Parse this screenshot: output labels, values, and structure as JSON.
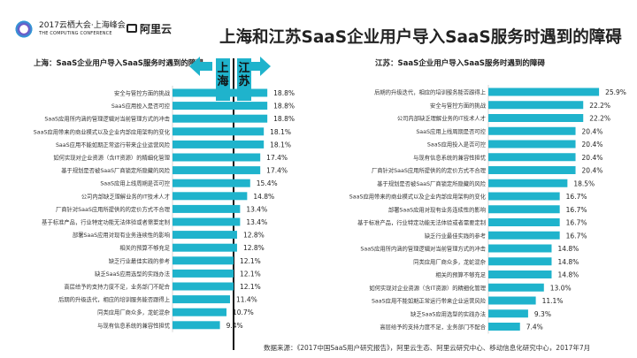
{
  "header": {
    "conference": "2017云栖大会·上海峰会",
    "conference_en": "THE COMPUTING CONFERENCE",
    "brand": "阿里云",
    "title": "上海和江苏SaaS企业用户导入SaaS服务时遇到的障碍"
  },
  "center": {
    "left_tab": "上海",
    "right_tab": "江苏"
  },
  "bar_color": "#1fb3cc",
  "footer": "数据来源：《2017中国SaaS用户研究报告》，阿里云生态、阿里云研究中心、移动信息化研究中心，2017年7月",
  "chart_data": [
    {
      "type": "bar",
      "orientation": "horizontal",
      "title": "上海：SaaS企业用户导入SaaS服务时遇到的障碍",
      "unit": "%",
      "categories": [
        "安全与管控方面的挑战",
        "SaaS应用投入是否可控",
        "SaaS应用所内涵的管理逻辑对当前管理方式的冲击",
        "SaaS应用带来的商业模式以及企业内部应用架构的变化",
        "SaaS应用不能如期正常运行带来企业运营风险",
        "如何实现对企业资源（含IT资源）的精细化管理",
        "基于规划是否被SaaS厂商锁定所隐藏的风险",
        "SaaS应用上线周期是否可控",
        "公司内部缺乏理解业务的IT技术人才",
        "厂商针对SaaS应用所提供的的定价方式不合理",
        "基于标准产品，行业特定功能无法体验或者需要定制",
        "部署SaaS应用对现有业务连续性的影响",
        "相关的预算不够充足",
        "缺乏行业最佳实践的参考",
        "缺乏SaaS应用选型的实践办法",
        "高层给予的支持力度不足，业务部门不配合",
        "后期的升级迭代，相应的培训服务能否跟得上",
        "同类应用厂商众多，龙蛇混杂",
        "与现有信息系统的兼容性担忧"
      ],
      "values": [
        18.8,
        18.8,
        18.8,
        18.1,
        18.1,
        17.4,
        17.4,
        15.4,
        14.8,
        13.4,
        13.4,
        12.8,
        12.8,
        12.1,
        12.1,
        12.1,
        11.4,
        10.7,
        9.4
      ],
      "labels": [
        "18.8%",
        "18.8%",
        "18.8%",
        "18.1%",
        "18.1%",
        "17.4%",
        "17.4%",
        "15.4%",
        "14.8%",
        "13.4%",
        "13.4%",
        "12.8%",
        "12.8%",
        "12.1%",
        "12.1%",
        "12.1%",
        "11.4%",
        "10.7%",
        "9.4%"
      ]
    },
    {
      "type": "bar",
      "orientation": "horizontal",
      "title": "江苏：SaaS企业用户导入SaaS服务时遇到的障碍",
      "unit": "%",
      "categories": [
        "后期的升级迭代，相应的培训服务能否跟得上",
        "安全与管控方面的挑战",
        "公司内部缺乏理解业务的IT技术人才",
        "SaaS应用上线周期是否可控",
        "SaaS应用投入是否可控",
        "与现有信息系统的兼容性担忧",
        "厂商针对SaaS应用所提供的的定价方式不合理",
        "基于规划是否被SaaS厂商锁定所隐藏的风险",
        "SaaS应用带来的商业模式以及企业内部应用架构的变化",
        "部署SaaS应用对现有业务连续性的影响",
        "基于标准产品，行业特定功能无法体验或者需要定制",
        "缺乏行业最佳实践的参考",
        "SaaS应用所内涵的管理逻辑对当前管理方式的冲击",
        "同类应用厂商众多，龙蛇混杂",
        "相关的预算不够充足",
        "如何实现对企业资源（含IT资源）的精细化管理",
        "SaaS应用不能如期正常运行带来企业运营风险",
        "缺乏SaaS应用选型的实践办法",
        "高层给予的支持力度不足，业务部门不配合"
      ],
      "values": [
        25.9,
        22.2,
        22.2,
        20.4,
        20.4,
        20.4,
        20.4,
        18.5,
        16.7,
        16.7,
        16.7,
        16.7,
        14.8,
        14.8,
        14.8,
        13.0,
        11.1,
        9.3,
        7.4
      ],
      "labels": [
        "25.9%",
        "22.2%",
        "22.2%",
        "20.4%",
        "20.4%",
        "20.4%",
        "20.4%",
        "18.5%",
        "16.7%",
        "16.7%",
        "16.7%",
        "16.7%",
        "14.8%",
        "14.8%",
        "14.8%",
        "13.0%",
        "11.1%",
        "9.3%",
        "7.4%"
      ]
    }
  ]
}
